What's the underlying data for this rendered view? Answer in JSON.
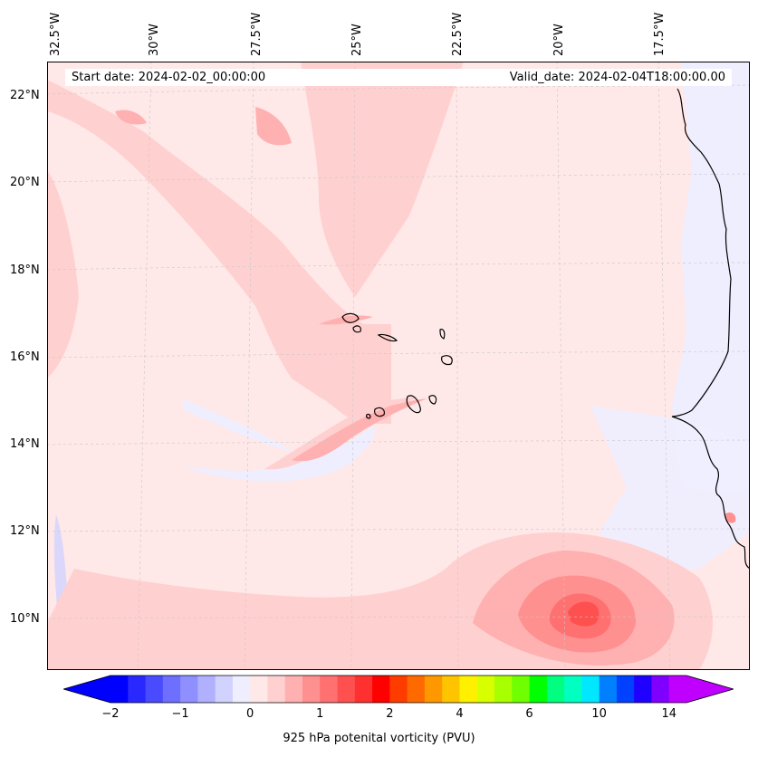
{
  "header": {
    "start_date": "Start date: 2024-02-02_00:00:00",
    "valid_date": "Valid_date: 2024-02-04T18:00:00.00"
  },
  "axes": {
    "longitude_labels": [
      "32.5°W",
      "30°W",
      "27.5°W",
      "25°W",
      "22.5°W",
      "20°W",
      "17.5°W"
    ],
    "latitude_labels": [
      "22°N",
      "20°N",
      "18°N",
      "16°N",
      "14°N",
      "12°N",
      "10°N"
    ],
    "lon_range": [
      -33.0,
      -15.0
    ],
    "lat_range": [
      8.9,
      22.8
    ],
    "gridlines": true
  },
  "colorbar": {
    "title": "925 hPa potenital vorticity (PVU)",
    "tick_labels": [
      "−2",
      "−1",
      "0",
      "1",
      "2",
      "4",
      "6",
      "10",
      "14"
    ],
    "colors": [
      "#0000ff",
      "#2828ff",
      "#4a4aff",
      "#6e6eff",
      "#8f8fff",
      "#b0b0ff",
      "#d2d2ff",
      "#eeeeff",
      "#ffe8e8",
      "#ffd0d0",
      "#ffb0b0",
      "#ff9090",
      "#ff7070",
      "#ff5050",
      "#ff3030",
      "#ff0000",
      "#ff3c00",
      "#ff6a00",
      "#ff9800",
      "#ffc400",
      "#fff000",
      "#d8ff00",
      "#a8ff00",
      "#70ff00",
      "#00ff00",
      "#00ff80",
      "#00ffc0",
      "#00e8ff",
      "#0080ff",
      "#0040ff",
      "#2000ff",
      "#8000ff",
      "#c000ff"
    ],
    "extend": "both"
  },
  "colors": {
    "background_field": "#ffe8e8",
    "coastline": "#000000"
  }
}
